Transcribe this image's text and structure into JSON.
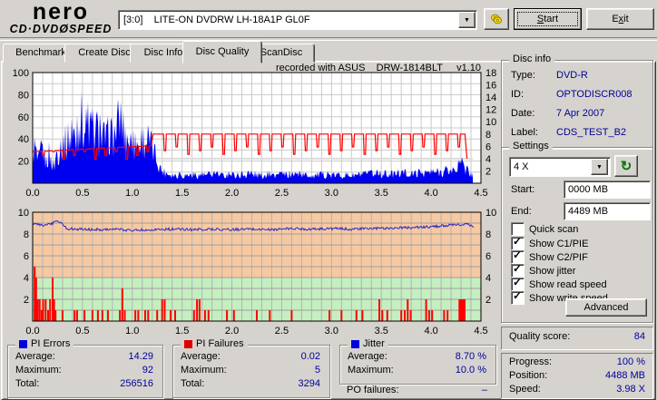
{
  "logo": {
    "brand": "nero",
    "product_left": "CD·DVD",
    "disc_glyph": "Ø",
    "product_right": "SPEED"
  },
  "toolbar": {
    "drive": "[3:0]    LITE-ON DVDRW LH-18A1P GL0F",
    "start": {
      "pre": "",
      "accel": "S",
      "rest": "tart"
    },
    "exit": {
      "pre": "E",
      "accel": "x",
      "rest": "it"
    },
    "icons": {
      "eject": "eject-discs",
      "combo_arrow": "▼"
    }
  },
  "tabs": [
    {
      "label": "Benchmark",
      "active": false
    },
    {
      "label": "Create Disc",
      "active": false
    },
    {
      "label": "Disc Info",
      "active": false
    },
    {
      "label": "Disc Quality",
      "active": true
    },
    {
      "label": "ScanDisc",
      "active": false
    }
  ],
  "chart_header": "recorded with ASUS    DRW-1814BLT     v1.10",
  "disc_info": {
    "title": "Disc info",
    "rows": [
      {
        "label": "Type:",
        "value": "DVD-R"
      },
      {
        "label": "ID:",
        "value": "OPTODISCR008"
      },
      {
        "label": "Date:",
        "value": "7 Apr 2007"
      },
      {
        "label": "Label:",
        "value": "CDS_TEST_B2"
      }
    ]
  },
  "settings": {
    "title": "Settings",
    "speed_value": "4 X",
    "refresh_icon": "↻",
    "start_label": "Start:",
    "start_value": "0000 MB",
    "end_label": "End:",
    "end_value": "4489 MB",
    "checkboxes": [
      {
        "label": "Quick scan",
        "checked": false
      },
      {
        "label": "Show C1/PIE",
        "checked": true
      },
      {
        "label": "Show C2/PIF",
        "checked": true
      },
      {
        "label": "Show jitter",
        "checked": true
      },
      {
        "label": "Show read speed",
        "checked": true
      },
      {
        "label": "Show write speed",
        "checked": true
      }
    ],
    "advanced_label": "Advanced"
  },
  "quality": {
    "label": "Quality score:",
    "value": "84"
  },
  "progress": {
    "rows": [
      {
        "label": "Progress:",
        "value": "100 %"
      },
      {
        "label": "Position:",
        "value": "4488 MB"
      },
      {
        "label": "Speed:",
        "value": "3.98 X"
      }
    ]
  },
  "stats_groups": [
    {
      "title": "PI Errors",
      "color": "#0000dd",
      "rows": [
        {
          "label": "Average:",
          "value": "14.29"
        },
        {
          "label": "Maximum:",
          "value": "92"
        },
        {
          "label": "Total:",
          "value": "256516"
        }
      ]
    },
    {
      "title": "PI Failures",
      "color": "#dd0000",
      "rows": [
        {
          "label": "Average:",
          "value": "0.02"
        },
        {
          "label": "Maximum:",
          "value": "5"
        },
        {
          "label": "Total:",
          "value": "3294"
        }
      ]
    },
    {
      "title": "Jitter",
      "color": "#0000dd",
      "rows": [
        {
          "label": "Average:",
          "value": "8.70 %"
        },
        {
          "label": "Maximum:",
          "value": "10.0 %"
        }
      ]
    }
  ],
  "po_failures": {
    "label": "PO failures:",
    "value": "–"
  },
  "chart_data": [
    {
      "type": "area",
      "title": "C1/PIE errors vs disc position (GB)",
      "x": {
        "min": 0,
        "max": 4.5,
        "tick_step": 0.5,
        "grid_step": 0.1,
        "data_end": 4.42
      },
      "y_left": {
        "min": 0,
        "max": 100,
        "ticks": [
          20,
          40,
          60,
          80,
          100
        ],
        "grid_step": 10
      },
      "y_right": {
        "min": 0,
        "max": 18,
        "ticks": [
          2,
          4,
          6,
          8,
          10,
          12,
          14,
          16,
          18
        ]
      },
      "series": [
        {
          "name": "pie-errors",
          "type": "spiky-area",
          "axis": "left",
          "color": "#0000f0",
          "envelope": [
            [
              0,
              35
            ],
            [
              0.02,
              48
            ],
            [
              0.04,
              30
            ],
            [
              0.06,
              25
            ],
            [
              0.08,
              40
            ],
            [
              0.1,
              45
            ],
            [
              0.12,
              32
            ],
            [
              0.14,
              26
            ],
            [
              0.16,
              38
            ],
            [
              0.18,
              30
            ],
            [
              0.2,
              24
            ],
            [
              0.22,
              22
            ],
            [
              0.24,
              42
            ],
            [
              0.26,
              38
            ],
            [
              0.28,
              52
            ],
            [
              0.3,
              48
            ],
            [
              0.32,
              56
            ],
            [
              0.34,
              50
            ],
            [
              0.36,
              62
            ],
            [
              0.38,
              55
            ],
            [
              0.4,
              58
            ],
            [
              0.42,
              62
            ],
            [
              0.44,
              55
            ],
            [
              0.46,
              70
            ],
            [
              0.48,
              92
            ],
            [
              0.5,
              80
            ],
            [
              0.52,
              68
            ],
            [
              0.54,
              75
            ],
            [
              0.56,
              70
            ],
            [
              0.58,
              62
            ],
            [
              0.6,
              72
            ],
            [
              0.62,
              60
            ],
            [
              0.64,
              66
            ],
            [
              0.66,
              58
            ],
            [
              0.68,
              62
            ],
            [
              0.7,
              56
            ],
            [
              0.72,
              60
            ],
            [
              0.74,
              55
            ],
            [
              0.76,
              62
            ],
            [
              0.78,
              68
            ],
            [
              0.8,
              58
            ],
            [
              0.82,
              62
            ],
            [
              0.84,
              70
            ],
            [
              0.86,
              80
            ],
            [
              0.88,
              84
            ],
            [
              0.9,
              76
            ],
            [
              0.92,
              64
            ],
            [
              0.94,
              58
            ],
            [
              0.96,
              60
            ],
            [
              0.98,
              55
            ],
            [
              1,
              50
            ],
            [
              1.02,
              44
            ],
            [
              1.04,
              56
            ],
            [
              1.06,
              48
            ],
            [
              1.08,
              50
            ],
            [
              1.1,
              62
            ],
            [
              1.12,
              52
            ],
            [
              1.14,
              58
            ],
            [
              1.16,
              50
            ],
            [
              1.18,
              52
            ],
            [
              1.2,
              46
            ],
            [
              1.22,
              40
            ],
            [
              1.24,
              34
            ],
            [
              1.26,
              26
            ],
            [
              1.28,
              20
            ],
            [
              1.3,
              16
            ],
            [
              1.35,
              13
            ],
            [
              1.4,
              11
            ],
            [
              1.5,
              10
            ],
            [
              1.6,
              11
            ],
            [
              1.7,
              10
            ],
            [
              1.8,
              11
            ],
            [
              1.9,
              10
            ],
            [
              2,
              11
            ],
            [
              2.1,
              10
            ],
            [
              2.2,
              11
            ],
            [
              2.3,
              10
            ],
            [
              2.4,
              11
            ],
            [
              2.5,
              10
            ],
            [
              2.6,
              12
            ],
            [
              2.7,
              11
            ],
            [
              2.8,
              10
            ],
            [
              2.9,
              11
            ],
            [
              3,
              10
            ],
            [
              3.1,
              11
            ],
            [
              3.2,
              10
            ],
            [
              3.3,
              11
            ],
            [
              3.4,
              12
            ],
            [
              3.5,
              11
            ],
            [
              3.6,
              12
            ],
            [
              3.7,
              13
            ],
            [
              3.8,
              12
            ],
            [
              3.9,
              14
            ],
            [
              4,
              14
            ],
            [
              4.1,
              15
            ],
            [
              4.2,
              16
            ],
            [
              4.25,
              18
            ],
            [
              4.3,
              24
            ],
            [
              4.33,
              20
            ],
            [
              4.36,
              16
            ],
            [
              4.4,
              12
            ],
            [
              4.42,
              10
            ]
          ]
        },
        {
          "name": "read-speed",
          "type": "hline",
          "axis": "right",
          "color": "#dcdcdc",
          "value": 4.0
        },
        {
          "name": "write-speed",
          "type": "notched-line",
          "axis": "right",
          "color": "#ff0000",
          "segments": [
            {
              "x0": 0,
              "x1": 1.19,
              "y0": 5.1,
              "y1": 6.1,
              "dip_to": 3.9,
              "dip_every": 0.105
            },
            {
              "x0": 1.21,
              "x1": 4.33,
              "y0": 8,
              "y1": 8,
              "dip_to": 4.7,
              "dip_every": 0.118
            }
          ],
          "end": [
            [
              4.34,
              8
            ],
            [
              4.36,
              4.0
            ]
          ]
        }
      ]
    },
    {
      "type": "mixed",
      "title": "Jitter (%) and PI failures vs disc position (GB)",
      "x": {
        "min": 0,
        "max": 4.5,
        "tick_step": 0.5,
        "grid_step": 0.1,
        "data_end": 4.43
      },
      "y": {
        "min": 0,
        "max": 10,
        "ticks": [
          2,
          4,
          6,
          8,
          10
        ],
        "grid_step": 1
      },
      "zones": [
        {
          "from": 0,
          "to": 4,
          "color": "#c5efc0"
        },
        {
          "from": 4,
          "to": 10,
          "color": "#f6c9a2"
        }
      ],
      "series": [
        {
          "name": "pif-bars",
          "type": "bars",
          "color": "#ff0000",
          "bars": [
            [
              0.02,
              5
            ],
            [
              0.035,
              4
            ],
            [
              0.05,
              2
            ],
            [
              0.07,
              2
            ],
            [
              0.09,
              1
            ],
            [
              0.105,
              2
            ],
            [
              0.13,
              2
            ],
            [
              0.155,
              1
            ],
            [
              0.175,
              2
            ],
            [
              0.2,
              4
            ],
            [
              0.215,
              2
            ],
            [
              0.23,
              1
            ],
            [
              0.3,
              1
            ],
            [
              0.42,
              1
            ],
            [
              0.445,
              1
            ],
            [
              0.52,
              1
            ],
            [
              0.6,
              1
            ],
            [
              0.655,
              1
            ],
            [
              0.7,
              1
            ],
            [
              0.755,
              1
            ],
            [
              0.875,
              1
            ],
            [
              0.9,
              3
            ],
            [
              0.925,
              1
            ],
            [
              1.03,
              1
            ],
            [
              1.06,
              1
            ],
            [
              1.13,
              1
            ],
            [
              1.16,
              1
            ],
            [
              1.25,
              1
            ],
            [
              1.3,
              2
            ],
            [
              1.325,
              2
            ],
            [
              1.385,
              1
            ],
            [
              1.43,
              1
            ],
            [
              1.62,
              1
            ],
            [
              1.65,
              2
            ],
            [
              1.675,
              2
            ],
            [
              1.73,
              1
            ],
            [
              1.765,
              1
            ],
            [
              1.95,
              1
            ],
            [
              2.02,
              1
            ],
            [
              2.25,
              1
            ],
            [
              2.38,
              1
            ],
            [
              2.6,
              1
            ],
            [
              2.98,
              1
            ],
            [
              3.1,
              1
            ],
            [
              3.25,
              1
            ],
            [
              3.31,
              1
            ],
            [
              3.48,
              2
            ],
            [
              3.51,
              1
            ],
            [
              3.56,
              1
            ],
            [
              3.7,
              1
            ],
            [
              3.735,
              1
            ],
            [
              3.765,
              2
            ],
            [
              3.795,
              1
            ],
            [
              3.95,
              2
            ],
            [
              3.98,
              1
            ],
            [
              4.01,
              1
            ],
            [
              4.13,
              1
            ],
            [
              4.165,
              1
            ],
            [
              4.31,
              2,
              0.07
            ]
          ]
        },
        {
          "name": "jitter",
          "type": "noisy-line",
          "color": "#2828c8",
          "noise": 0.12,
          "envelope": [
            [
              0,
              8.85
            ],
            [
              0.05,
              8.9
            ],
            [
              0.1,
              8.8
            ],
            [
              0.15,
              8.9
            ],
            [
              0.2,
              8.95
            ],
            [
              0.24,
              9.25
            ],
            [
              0.27,
              9.15
            ],
            [
              0.3,
              8.9
            ],
            [
              0.34,
              8.5
            ],
            [
              0.45,
              8.45
            ],
            [
              0.6,
              8.4
            ],
            [
              0.8,
              8.45
            ],
            [
              1,
              8.35
            ],
            [
              1.2,
              8.4
            ],
            [
              1.4,
              8.45
            ],
            [
              1.6,
              8.4
            ],
            [
              1.8,
              8.45
            ],
            [
              2,
              8.4
            ],
            [
              2.2,
              8.45
            ],
            [
              2.4,
              8.4
            ],
            [
              2.6,
              8.5
            ],
            [
              2.8,
              8.45
            ],
            [
              3,
              8.5
            ],
            [
              3.2,
              8.45
            ],
            [
              3.4,
              8.5
            ],
            [
              3.6,
              8.55
            ],
            [
              3.8,
              8.6
            ],
            [
              4,
              8.65
            ],
            [
              4.1,
              8.75
            ],
            [
              4.2,
              8.8
            ],
            [
              4.3,
              8.85
            ],
            [
              4.38,
              8.9
            ],
            [
              4.43,
              8.55
            ]
          ]
        }
      ]
    }
  ]
}
